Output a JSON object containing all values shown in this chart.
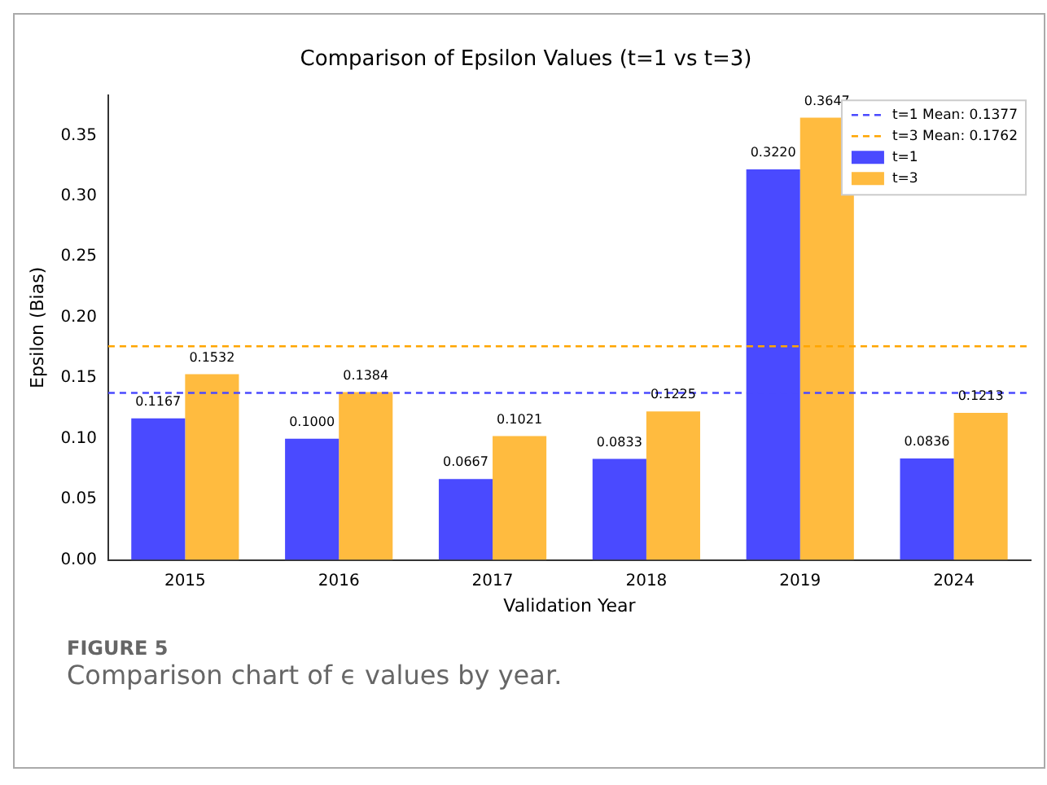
{
  "chart_data": {
    "type": "bar",
    "title": "Comparison of Epsilon Values (t=1 vs t=3)",
    "xlabel": "Validation Year",
    "ylabel": "Epsilon (Bias)",
    "categories": [
      "2015",
      "2016",
      "2017",
      "2018",
      "2019",
      "2024"
    ],
    "series": [
      {
        "name": "t=1",
        "color": "#4a4aff",
        "values": [
          0.1167,
          0.1,
          0.0667,
          0.0833,
          0.322,
          0.0836
        ],
        "value_labels": [
          "0.1167",
          "0.1000",
          "0.0667",
          "0.0833",
          "0.3220",
          "0.0836"
        ]
      },
      {
        "name": "t=3",
        "color": "#ffbb3f",
        "values": [
          0.1532,
          0.1384,
          0.1021,
          0.1225,
          0.3647,
          0.1213
        ],
        "value_labels": [
          "0.1532",
          "0.1384",
          "0.1021",
          "0.1225",
          "0.3647",
          "0.1213"
        ]
      }
    ],
    "ylim": [
      0,
      0.383
    ],
    "yticks": [
      {
        "value": 0,
        "label": "0.00"
      },
      {
        "value": 0.05,
        "label": "0.05"
      },
      {
        "value": 0.1,
        "label": "0.10"
      },
      {
        "value": 0.15,
        "label": "0.15"
      },
      {
        "value": 0.2,
        "label": "0.20"
      },
      {
        "value": 0.25,
        "label": "0.25"
      },
      {
        "value": 0.3,
        "label": "0.30"
      },
      {
        "value": 0.35,
        "label": "0.35"
      }
    ],
    "ref_lines": [
      {
        "axis": "y",
        "value": 0.1377,
        "label": "t=1 Mean: 0.1377",
        "color": "#4a4aff",
        "line_style": "dashed"
      },
      {
        "axis": "y",
        "value": 0.1762,
        "label": "t=3 Mean: 0.1762",
        "color": "#ffa500",
        "line_style": "dashed"
      }
    ],
    "grid": false,
    "legend": "top right",
    "annotations": [
      "FIGURE 5",
      "Comparison chart of ϵ values by year."
    ]
  }
}
